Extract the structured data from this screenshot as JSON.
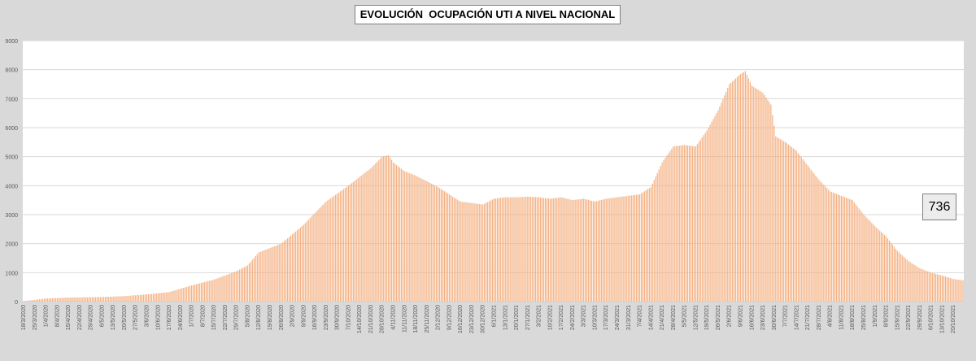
{
  "chart_data": {
    "type": "bar",
    "title": "EVOLUCIÓN  OCUPACIÓN UTI A NIVEL NACIONAL",
    "xlabel": "",
    "ylabel": "",
    "ylim": [
      0,
      9000
    ],
    "yticks": [
      0,
      1000,
      2000,
      3000,
      4000,
      5000,
      6000,
      7000,
      8000,
      9000
    ],
    "grid": true,
    "start_date": "2020-03-18",
    "end_date": "2021-10-26",
    "x_tick_labels": [
      "18/3/2020",
      "25/3/2020",
      "1/4/2020",
      "8/4/2020",
      "15/4/2020",
      "22/4/2020",
      "29/4/2020",
      "6/5/2020",
      "13/5/2020",
      "20/5/2020",
      "27/5/2020",
      "3/6/2020",
      "10/6/2020",
      "17/6/2020",
      "24/6/2020",
      "1/7/2020",
      "8/7/2020",
      "15/7/2020",
      "22/7/2020",
      "29/7/2020",
      "5/8/2020",
      "12/8/2020",
      "19/8/2020",
      "26/8/2020",
      "2/9/2020",
      "9/9/2020",
      "16/9/2020",
      "23/9/2020",
      "30/9/2020",
      "7/10/2020",
      "14/10/2020",
      "21/10/2020",
      "28/10/2020",
      "4/11/2020",
      "11/11/2020",
      "18/11/2020",
      "25/11/2020",
      "2/12/2020",
      "9/12/2020",
      "16/12/2020",
      "23/12/2020",
      "30/12/2020",
      "6/1/2021",
      "13/1/2021",
      "20/1/2021",
      "27/1/2021",
      "3/2/2021",
      "10/2/2021",
      "17/2/2021",
      "24/2/2021",
      "3/3/2021",
      "10/3/2021",
      "17/3/2021",
      "24/3/2021",
      "31/3/2021",
      "7/4/2021",
      "14/4/2021",
      "21/4/2021",
      "28/4/2021",
      "5/5/2021",
      "12/5/2021",
      "19/5/2021",
      "26/5/2021",
      "2/6/2021",
      "9/6/2021",
      "16/6/2021",
      "23/6/2021",
      "30/6/2021",
      "7/7/2021",
      "14/7/2021",
      "21/7/2021",
      "28/7/2021",
      "4/8/2021",
      "11/8/2021",
      "18/8/2021",
      "25/8/2021",
      "1/9/2021",
      "8/9/2021",
      "15/9/2021",
      "22/9/2021",
      "29/9/2021",
      "6/10/2021",
      "13/10/2021",
      "20/10/2021"
    ],
    "series": [
      {
        "name": "",
        "color": "#f4b183",
        "keypoints": [
          [
            "2020-03-18",
            20
          ],
          [
            "2020-03-25",
            60
          ],
          [
            "2020-04-01",
            110
          ],
          [
            "2020-04-15",
            140
          ],
          [
            "2020-05-06",
            160
          ],
          [
            "2020-05-20",
            190
          ],
          [
            "2020-06-03",
            250
          ],
          [
            "2020-06-17",
            330
          ],
          [
            "2020-07-01",
            560
          ],
          [
            "2020-07-15",
            760
          ],
          [
            "2020-07-29",
            1050
          ],
          [
            "2020-08-05",
            1250
          ],
          [
            "2020-08-12",
            1700
          ],
          [
            "2020-08-26",
            2000
          ],
          [
            "2020-09-09",
            2650
          ],
          [
            "2020-09-23",
            3450
          ],
          [
            "2020-10-07",
            4000
          ],
          [
            "2020-10-14",
            4300
          ],
          [
            "2020-10-21",
            4600
          ],
          [
            "2020-10-28",
            5000
          ],
          [
            "2020-11-01",
            5050
          ],
          [
            "2020-11-04",
            4800
          ],
          [
            "2020-11-11",
            4500
          ],
          [
            "2020-11-18",
            4350
          ],
          [
            "2020-11-25",
            4150
          ],
          [
            "2020-12-02",
            3950
          ],
          [
            "2020-12-09",
            3700
          ],
          [
            "2020-12-16",
            3450
          ],
          [
            "2020-12-23",
            3400
          ],
          [
            "2020-12-30",
            3350
          ],
          [
            "2021-01-06",
            3550
          ],
          [
            "2021-01-13",
            3600
          ],
          [
            "2021-01-20",
            3600
          ],
          [
            "2021-01-27",
            3620
          ],
          [
            "2021-02-03",
            3600
          ],
          [
            "2021-02-10",
            3550
          ],
          [
            "2021-02-17",
            3600
          ],
          [
            "2021-02-24",
            3500
          ],
          [
            "2021-03-03",
            3550
          ],
          [
            "2021-03-10",
            3450
          ],
          [
            "2021-03-17",
            3550
          ],
          [
            "2021-03-24",
            3600
          ],
          [
            "2021-03-31",
            3650
          ],
          [
            "2021-04-07",
            3700
          ],
          [
            "2021-04-14",
            3950
          ],
          [
            "2021-04-21",
            4800
          ],
          [
            "2021-04-28",
            5350
          ],
          [
            "2021-05-05",
            5400
          ],
          [
            "2021-05-12",
            5350
          ],
          [
            "2021-05-19",
            5900
          ],
          [
            "2021-05-26",
            6600
          ],
          [
            "2021-06-02",
            7500
          ],
          [
            "2021-06-09",
            7850
          ],
          [
            "2021-06-12",
            7950
          ],
          [
            "2021-06-16",
            7450
          ],
          [
            "2021-06-23",
            7200
          ],
          [
            "2021-06-28",
            6800
          ],
          [
            "2021-07-01",
            5700
          ],
          [
            "2021-07-07",
            5500
          ],
          [
            "2021-07-14",
            5200
          ],
          [
            "2021-07-21",
            4700
          ],
          [
            "2021-07-28",
            4200
          ],
          [
            "2021-08-04",
            3800
          ],
          [
            "2021-08-11",
            3650
          ],
          [
            "2021-08-18",
            3500
          ],
          [
            "2021-08-25",
            3000
          ],
          [
            "2021-09-01",
            2600
          ],
          [
            "2021-09-08",
            2250
          ],
          [
            "2021-09-15",
            1750
          ],
          [
            "2021-09-22",
            1400
          ],
          [
            "2021-09-29",
            1150
          ],
          [
            "2021-10-06",
            1000
          ],
          [
            "2021-10-13",
            900
          ],
          [
            "2021-10-20",
            780
          ],
          [
            "2021-10-26",
            736
          ]
        ]
      }
    ],
    "annotations": [
      {
        "label": "736",
        "refers_to": "2021-10-26"
      }
    ]
  },
  "colors": {
    "background": "#d9d9d9",
    "plot_background": "#ffffff",
    "gridline": "#d9d9d9",
    "bar": "#f4b183",
    "axis_text": "#595959"
  }
}
